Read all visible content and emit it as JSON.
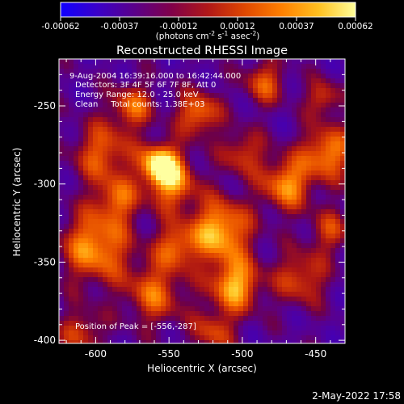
{
  "colorbar": {
    "ticks": [
      "-0.00062",
      "-0.00037",
      "-0.00012",
      "0.00012",
      "0.00037",
      "0.00062"
    ],
    "unit_prefix": "(photons cm",
    "unit_sup1": "-2",
    "unit_mid": " s",
    "unit_sup2": "-1",
    "unit_mid2": " asec",
    "unit_sup3": "-2",
    "unit_suffix": ")",
    "colors": [
      "#1000ff",
      "#3a00c8",
      "#5a008a",
      "#80004a",
      "#b01818",
      "#e04800",
      "#ff8000",
      "#ffc020",
      "#ffff9a"
    ]
  },
  "chart_data": {
    "type": "heatmap",
    "title": "Reconstructed RHESSI Image",
    "xlabel": "Heliocentric X (arcsec)",
    "ylabel": "Heliocentric Y (arcsec)",
    "xlim": [
      -625,
      -430
    ],
    "ylim": [
      -402,
      -220
    ],
    "x_ticks": [
      "-600",
      "-550",
      "-500",
      "-450"
    ],
    "y_ticks": [
      "-250",
      "-300",
      "-350",
      "-400"
    ],
    "annotations": [
      "9-Aug-2004 16:39:16.000 to 16:42:44.000",
      "Detectors: 3F 4F 5F 6F 7F 8F, Att 0",
      "Energy Range: 12.0 - 25.0 keV",
      "Clean     Total counts: 1.38E+03"
    ],
    "peak_label": "Position of Peak = [-556,-287]",
    "peak": [
      -556,
      -287
    ]
  },
  "timestamp": "2-May-2022 17:58"
}
